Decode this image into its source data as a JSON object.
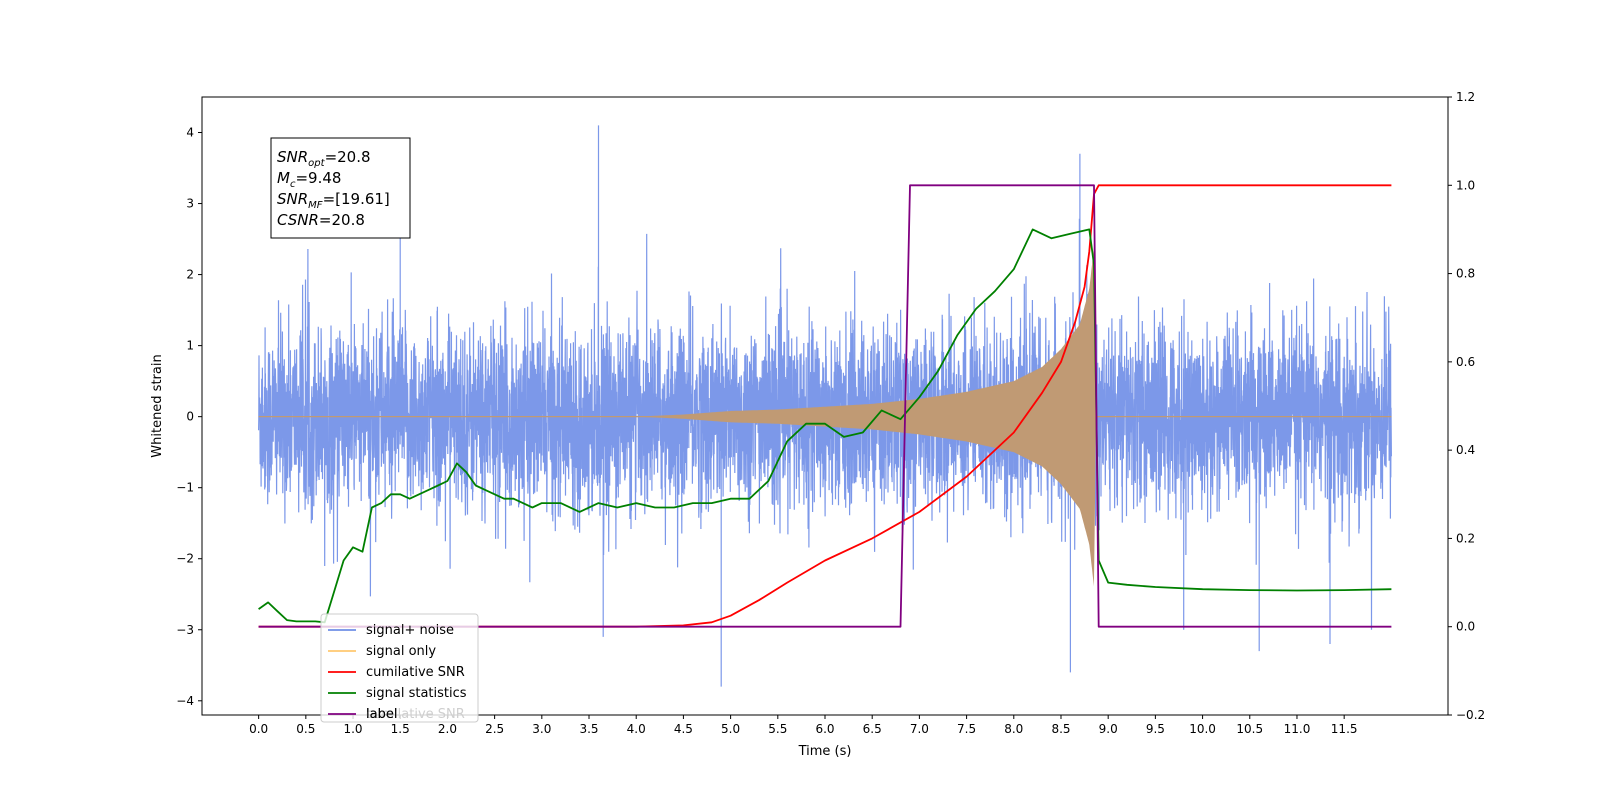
{
  "chart_data": {
    "type": "line",
    "xlabel": "Time (s)",
    "ylabel": "Whitened strain",
    "xlim": [
      -0.6,
      12.6
    ],
    "ylim": [
      -4.2,
      4.5
    ],
    "y2lim": [
      -0.2,
      1.2
    ],
    "x_ticks": [
      "0.0",
      "0.5",
      "1.0",
      "1.5",
      "2.0",
      "2.5",
      "3.0",
      "3.5",
      "4.0",
      "4.5",
      "5.0",
      "5.5",
      "6.0",
      "6.5",
      "7.0",
      "7.5",
      "8.0",
      "8.5",
      "9.0",
      "9.5",
      "10.0",
      "10.5",
      "11.0",
      "11.5"
    ],
    "y_ticks": [
      "4",
      "3",
      "2",
      "1",
      "0",
      "−1",
      "−2",
      "−3",
      "−4"
    ],
    "y2_ticks": [
      "1.2",
      "1.0",
      "0.8",
      "0.6",
      "0.4",
      "0.2",
      "0.0",
      "−0.2"
    ],
    "annotation": {
      "lines": [
        {
          "main": "SNR",
          "sub": "opt",
          "rest": "=20.8"
        },
        {
          "main": "M",
          "sub": "c",
          "rest": "=9.48"
        },
        {
          "main": "SNR",
          "sub": "MF",
          "rest": "=[19.61]"
        },
        {
          "main": "CSNR",
          "sub": "",
          "rest": "=20.8"
        }
      ]
    },
    "legend": {
      "placement": "lower-left",
      "entries": [
        {
          "label": "signal+ noise",
          "color": "#6f8fe6"
        },
        {
          "label": "signal only",
          "color": "#ffc870"
        },
        {
          "label": "cumilative SNR",
          "color": "#ff0000"
        },
        {
          "label": "signal statistics",
          "color": "#008000"
        },
        {
          "label": "label",
          "color": "#800080"
        }
      ],
      "hidden_label": "cumilative SNR"
    },
    "colors": {
      "noise": "#7592e8",
      "signal": "#c09a74",
      "cumulative": "#ff0000",
      "statistics": "#008000",
      "label": "#800080"
    },
    "series": [
      {
        "name": "signal+ noise",
        "axis": "left",
        "x_range": [
          0.0,
          12.0
        ],
        "typical_amplitude": 1.3,
        "extremes": [
          [
            1.5,
            2.9
          ],
          [
            3.6,
            4.1
          ],
          [
            3.65,
            -3.1
          ],
          [
            4.9,
            -3.8
          ],
          [
            8.6,
            -3.6
          ],
          [
            8.7,
            3.7
          ],
          [
            9.8,
            -3.0
          ],
          [
            10.6,
            -3.3
          ],
          [
            11.35,
            -3.2
          ]
        ]
      },
      {
        "name": "signal only",
        "axis": "left",
        "envelope": [
          [
            4.0,
            0.0
          ],
          [
            4.5,
            0.03
          ],
          [
            5.0,
            0.08
          ],
          [
            5.5,
            0.1
          ],
          [
            6.0,
            0.14
          ],
          [
            6.5,
            0.18
          ],
          [
            7.0,
            0.25
          ],
          [
            7.5,
            0.35
          ],
          [
            8.0,
            0.5
          ],
          [
            8.3,
            0.7
          ],
          [
            8.5,
            0.95
          ],
          [
            8.7,
            1.3
          ],
          [
            8.8,
            1.8
          ],
          [
            8.85,
            2.4
          ],
          [
            8.87,
            0.0
          ]
        ]
      },
      {
        "name": "cumilative SNR",
        "axis": "right",
        "x": [
          0.0,
          4.0,
          4.5,
          4.8,
          5.0,
          5.3,
          5.6,
          6.0,
          6.5,
          7.0,
          7.5,
          8.0,
          8.3,
          8.5,
          8.65,
          8.75,
          8.8,
          8.85,
          8.9,
          12.0
        ],
        "y": [
          0.0,
          0.0,
          0.003,
          0.01,
          0.025,
          0.06,
          0.1,
          0.15,
          0.2,
          0.26,
          0.34,
          0.44,
          0.53,
          0.6,
          0.69,
          0.77,
          0.85,
          0.98,
          1.0,
          1.0
        ]
      },
      {
        "name": "signal statistics",
        "axis": "right",
        "x": [
          0.0,
          0.1,
          0.2,
          0.3,
          0.4,
          0.5,
          0.6,
          0.7,
          0.8,
          0.9,
          1.0,
          1.1,
          1.2,
          1.3,
          1.4,
          1.5,
          1.6,
          1.7,
          1.8,
          1.9,
          2.0,
          2.1,
          2.2,
          2.3,
          2.4,
          2.5,
          2.6,
          2.7,
          2.8,
          2.9,
          3.0,
          3.2,
          3.4,
          3.6,
          3.8,
          4.0,
          4.2,
          4.4,
          4.6,
          4.8,
          5.0,
          5.2,
          5.4,
          5.6,
          5.8,
          6.0,
          6.2,
          6.4,
          6.6,
          6.8,
          7.0,
          7.2,
          7.4,
          7.6,
          7.8,
          8.0,
          8.2,
          8.4,
          8.6,
          8.8,
          8.85,
          8.9,
          9.0,
          9.2,
          9.5,
          10.0,
          10.5,
          11.0,
          11.5,
          12.0
        ],
        "y": [
          0.04,
          0.055,
          0.035,
          0.015,
          0.012,
          0.012,
          0.012,
          0.01,
          0.08,
          0.15,
          0.18,
          0.17,
          0.27,
          0.28,
          0.3,
          0.3,
          0.29,
          0.3,
          0.31,
          0.32,
          0.33,
          0.37,
          0.35,
          0.32,
          0.31,
          0.3,
          0.29,
          0.29,
          0.28,
          0.27,
          0.28,
          0.28,
          0.26,
          0.28,
          0.27,
          0.28,
          0.27,
          0.27,
          0.28,
          0.28,
          0.29,
          0.29,
          0.33,
          0.42,
          0.46,
          0.46,
          0.43,
          0.44,
          0.49,
          0.47,
          0.52,
          0.58,
          0.66,
          0.72,
          0.76,
          0.81,
          0.9,
          0.88,
          0.89,
          0.9,
          0.82,
          0.15,
          0.1,
          0.095,
          0.09,
          0.085,
          0.083,
          0.082,
          0.083,
          0.085
        ]
      },
      {
        "name": "label",
        "axis": "right",
        "x": [
          0.0,
          6.8,
          6.9,
          8.85,
          8.9,
          12.0
        ],
        "y": [
          0.0,
          0.0,
          1.0,
          1.0,
          0.0,
          0.0
        ]
      }
    ]
  }
}
